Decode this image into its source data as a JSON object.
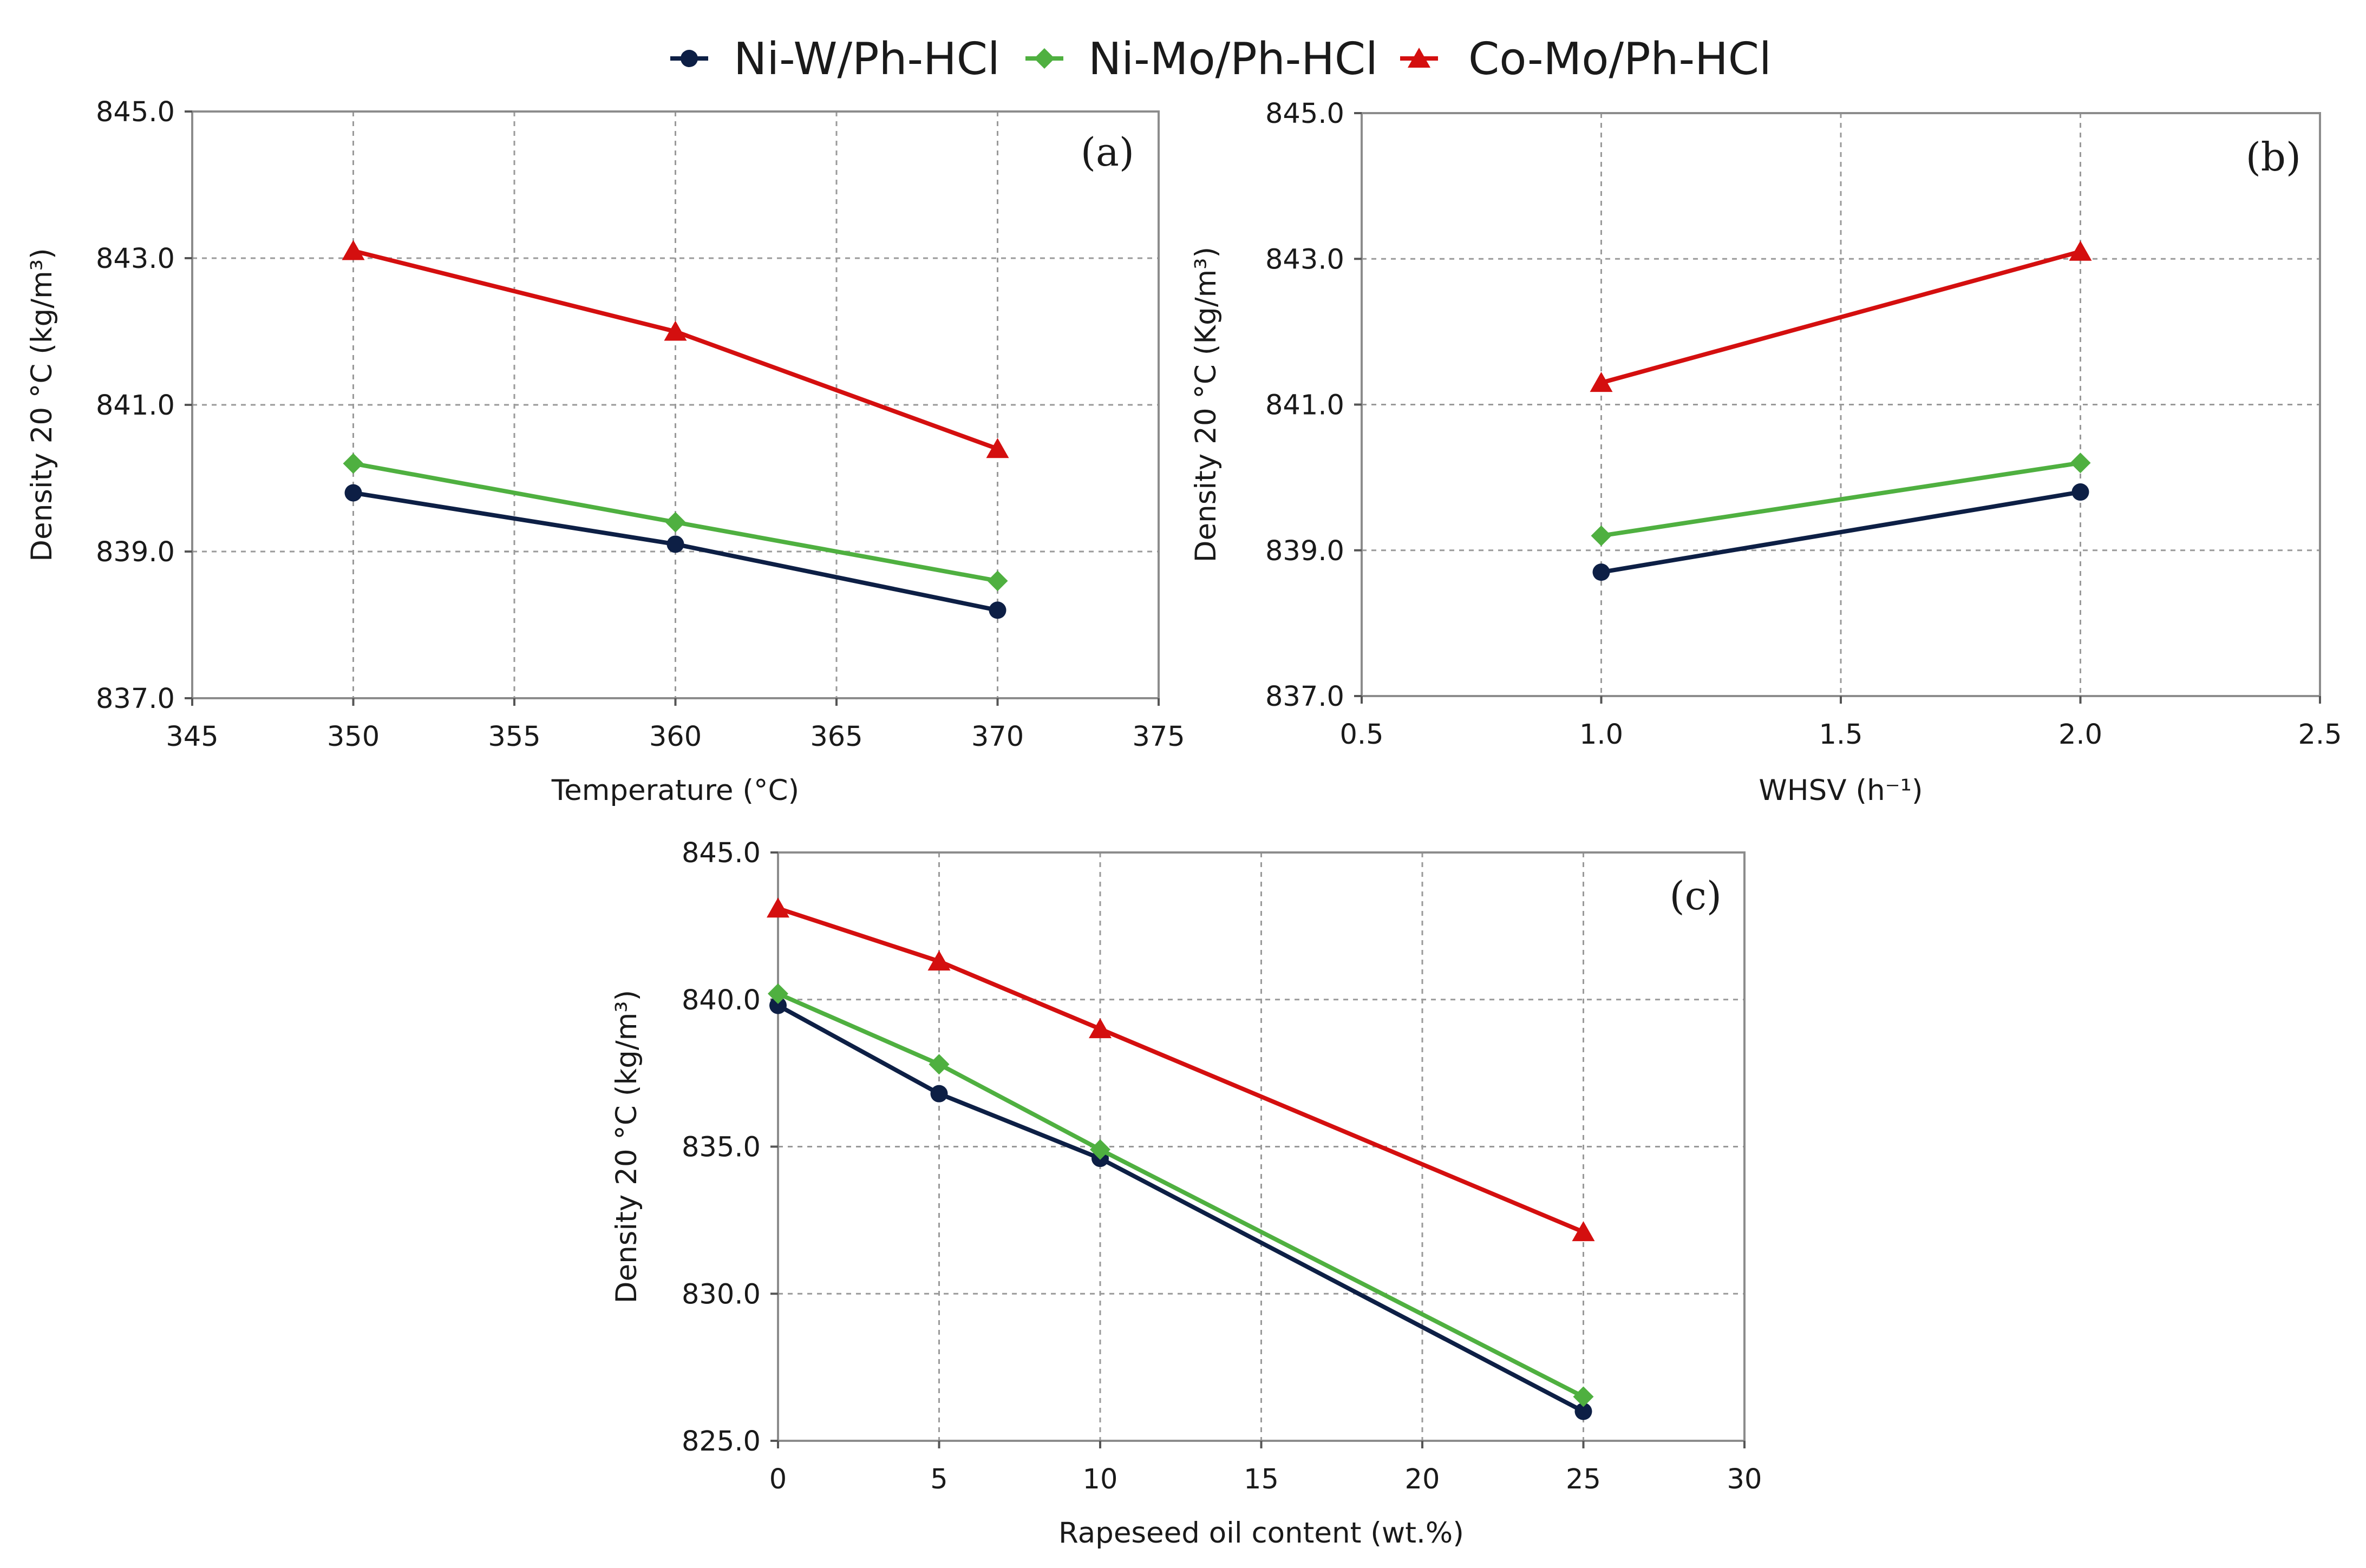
{
  "legend": [
    {
      "name": "Ni-W/Ph-HCl",
      "color": "#0d1f45",
      "marker": "circle"
    },
    {
      "name": "Ni-Mo/Ph-HCl",
      "color": "#4fb040",
      "marker": "diamond"
    },
    {
      "name": "Co-Mo/Ph-HCl",
      "color": "#d40f0f",
      "marker": "triangle"
    }
  ],
  "chart_data": [
    {
      "id": "a",
      "type": "line",
      "panel_label": "(a)",
      "xlabel": "Temperature (°C)",
      "ylabel": "Density 20 °C (kg/m³)",
      "xlim": [
        345,
        375
      ],
      "ylim": [
        837,
        845
      ],
      "xticks": [
        345,
        350,
        355,
        360,
        365,
        370,
        375
      ],
      "yticks": [
        837,
        839,
        841,
        843,
        845
      ],
      "xdecimals": 0,
      "ydecimals": 1,
      "x": [
        350,
        360,
        370
      ],
      "series": [
        {
          "name": "Ni-W/Ph-HCl",
          "values": [
            839.8,
            839.1,
            838.2
          ]
        },
        {
          "name": "Ni-Mo/Ph-HCl",
          "values": [
            840.2,
            839.4,
            838.6
          ]
        },
        {
          "name": "Co-Mo/Ph-HCl",
          "values": [
            843.1,
            842.0,
            840.4
          ]
        }
      ]
    },
    {
      "id": "b",
      "type": "line",
      "panel_label": "(b)",
      "xlabel": "WHSV (h⁻¹)",
      "ylabel": "Density 20 °C (Kg/m³)",
      "xlim": [
        0.5,
        2.5
      ],
      "ylim": [
        837,
        845
      ],
      "xticks": [
        0.5,
        1.0,
        1.5,
        2.0,
        2.5
      ],
      "yticks": [
        837,
        839,
        841,
        843,
        845
      ],
      "xdecimals": 1,
      "ydecimals": 1,
      "x": [
        1.0,
        2.0
      ],
      "series": [
        {
          "name": "Ni-W/Ph-HCl",
          "values": [
            838.7,
            839.8
          ]
        },
        {
          "name": "Ni-Mo/Ph-HCl",
          "values": [
            839.2,
            840.2
          ]
        },
        {
          "name": "Co-Mo/Ph-HCl",
          "values": [
            841.3,
            843.1
          ]
        }
      ]
    },
    {
      "id": "c",
      "type": "line",
      "panel_label": "(c)",
      "xlabel": "Rapeseed oil content (wt.%)",
      "ylabel": "Density 20 °C (kg/m³)",
      "xlim": [
        0,
        30
      ],
      "ylim": [
        825,
        845
      ],
      "xticks": [
        0,
        5,
        10,
        15,
        20,
        25,
        30
      ],
      "yticks": [
        825,
        830,
        835,
        840,
        845
      ],
      "xdecimals": 0,
      "ydecimals": 1,
      "x": [
        0,
        5,
        10,
        25
      ],
      "series": [
        {
          "name": "Ni-W/Ph-HCl",
          "values": [
            839.8,
            836.8,
            834.6,
            826.0
          ]
        },
        {
          "name": "Ni-Mo/Ph-HCl",
          "values": [
            840.2,
            837.8,
            834.9,
            826.5
          ]
        },
        {
          "name": "Co-Mo/Ph-HCl",
          "values": [
            843.1,
            841.3,
            839.0,
            832.1
          ]
        }
      ]
    }
  ]
}
